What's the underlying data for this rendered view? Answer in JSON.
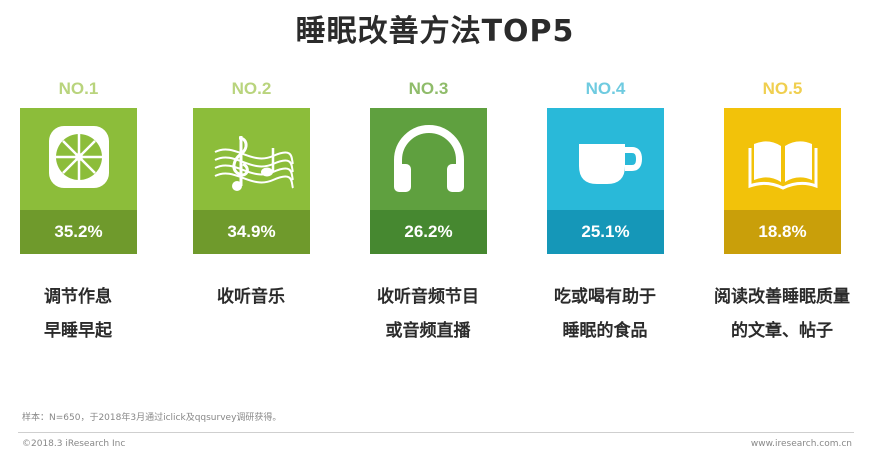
{
  "title": "睡眠改善方法TOP5",
  "chart_data": {
    "type": "table",
    "title": "睡眠改善方法TOP5",
    "items": [
      {
        "rank": "NO.1",
        "value": 35.2,
        "display": "35.2%",
        "label_lines": [
          "调节作息",
          "早睡早起"
        ],
        "icon": "lime-icon",
        "top_color": "#8cbd3a",
        "band_color": "#6f9a2c",
        "rank_color": "#b9d47d"
      },
      {
        "rank": "NO.2",
        "value": 34.9,
        "display": "34.9%",
        "label_lines": [
          "收听音乐"
        ],
        "icon": "music-note-icon",
        "top_color": "#8cbd3a",
        "band_color": "#6f9a2c",
        "rank_color": "#b9d47d"
      },
      {
        "rank": "NO.3",
        "value": 26.2,
        "display": "26.2%",
        "label_lines": [
          "收听音频节目",
          "或音频直播"
        ],
        "icon": "headphones-icon",
        "top_color": "#5fa03f",
        "band_color": "#468830",
        "rank_color": "#8fbc6a"
      },
      {
        "rank": "NO.4",
        "value": 25.1,
        "display": "25.1%",
        "label_lines": [
          "吃或喝有助于",
          "睡眠的食品"
        ],
        "icon": "cup-icon",
        "top_color": "#29b9d9",
        "band_color": "#1597b8",
        "rank_color": "#6fcbe0"
      },
      {
        "rank": "NO.5",
        "value": 18.8,
        "display": "18.8%",
        "label_lines": [
          "阅读改善睡眠质量",
          "的文章、帖子"
        ],
        "icon": "book-icon",
        "top_color": "#f2c20a",
        "band_color": "#c99f0a",
        "rank_color": "#f0cf4f"
      }
    ]
  },
  "footer": {
    "note": "样本：N=650，于2018年3月通过iclick及qqsurvey调研获得。",
    "copyright": "©2018.3 iResearch Inc",
    "site": "www.iresearch.com.cn"
  }
}
